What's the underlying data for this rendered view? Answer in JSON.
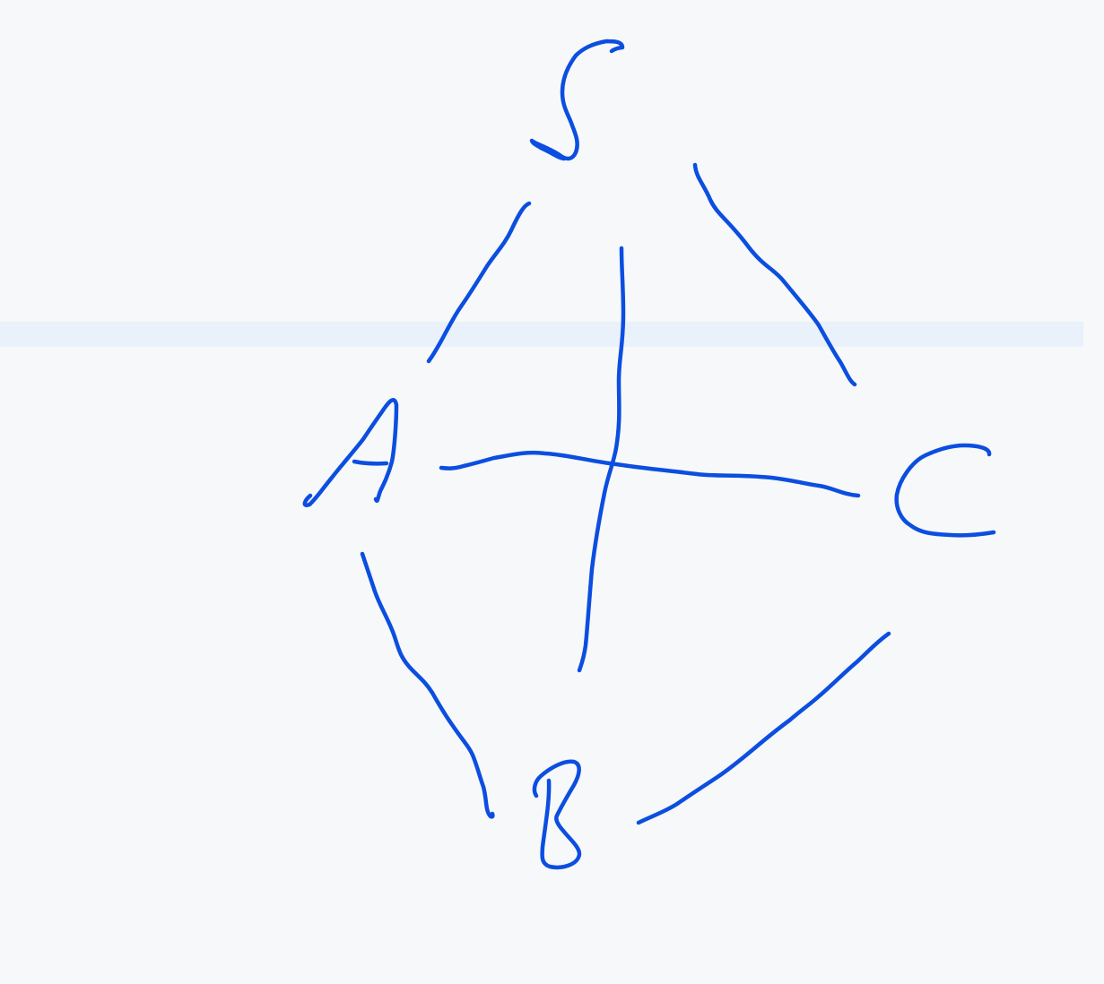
{
  "colors": {
    "background": "#f7f8f9",
    "guide_band": "#e9f1fb",
    "ink": "#0b4ee0"
  },
  "nodes": [
    {
      "id": "S",
      "label": "S"
    },
    {
      "id": "A",
      "label": "A"
    },
    {
      "id": "B",
      "label": "B"
    },
    {
      "id": "C",
      "label": "C"
    }
  ],
  "edges": [
    {
      "from": "S",
      "to": "A"
    },
    {
      "from": "S",
      "to": "C"
    },
    {
      "from": "S",
      "to": "B"
    },
    {
      "from": "A",
      "to": "C"
    },
    {
      "from": "A",
      "to": "B"
    },
    {
      "from": "B",
      "to": "C"
    }
  ]
}
